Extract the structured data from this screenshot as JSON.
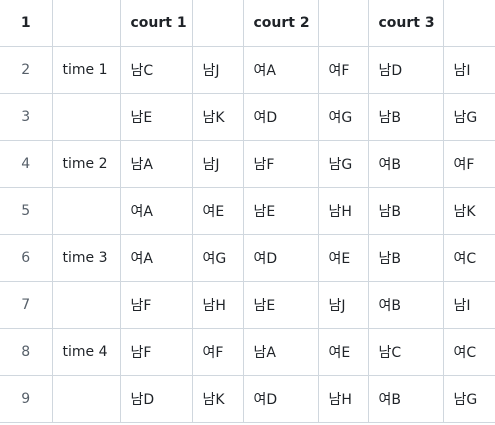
{
  "header": {
    "row_number": "1",
    "label": "",
    "cells": [
      "court 1",
      "",
      "court 2",
      "",
      "court 3",
      ""
    ]
  },
  "rows": [
    {
      "num": "2",
      "time": "time 1",
      "cells": [
        "남C",
        "남J",
        "여A",
        "여F",
        "남D",
        "남I"
      ]
    },
    {
      "num": "3",
      "time": "",
      "cells": [
        "남E",
        "남K",
        "여D",
        "여G",
        "남B",
        "남G"
      ]
    },
    {
      "num": "4",
      "time": "time 2",
      "cells": [
        "남A",
        "남J",
        "남F",
        "남G",
        "여B",
        "여F"
      ]
    },
    {
      "num": "5",
      "time": "",
      "cells": [
        "여A",
        "여E",
        "남E",
        "남H",
        "남B",
        "남K"
      ]
    },
    {
      "num": "6",
      "time": "time 3",
      "cells": [
        "여A",
        "여G",
        "여D",
        "여E",
        "남B",
        "여C"
      ]
    },
    {
      "num": "7",
      "time": "",
      "cells": [
        "남F",
        "남H",
        "남E",
        "남J",
        "여B",
        "남I"
      ]
    },
    {
      "num": "8",
      "time": "time 4",
      "cells": [
        "남F",
        "여F",
        "남A",
        "여E",
        "남C",
        "여C"
      ]
    },
    {
      "num": "9",
      "time": "",
      "cells": [
        "남D",
        "남K",
        "여D",
        "남H",
        "여B",
        "남G"
      ]
    }
  ]
}
